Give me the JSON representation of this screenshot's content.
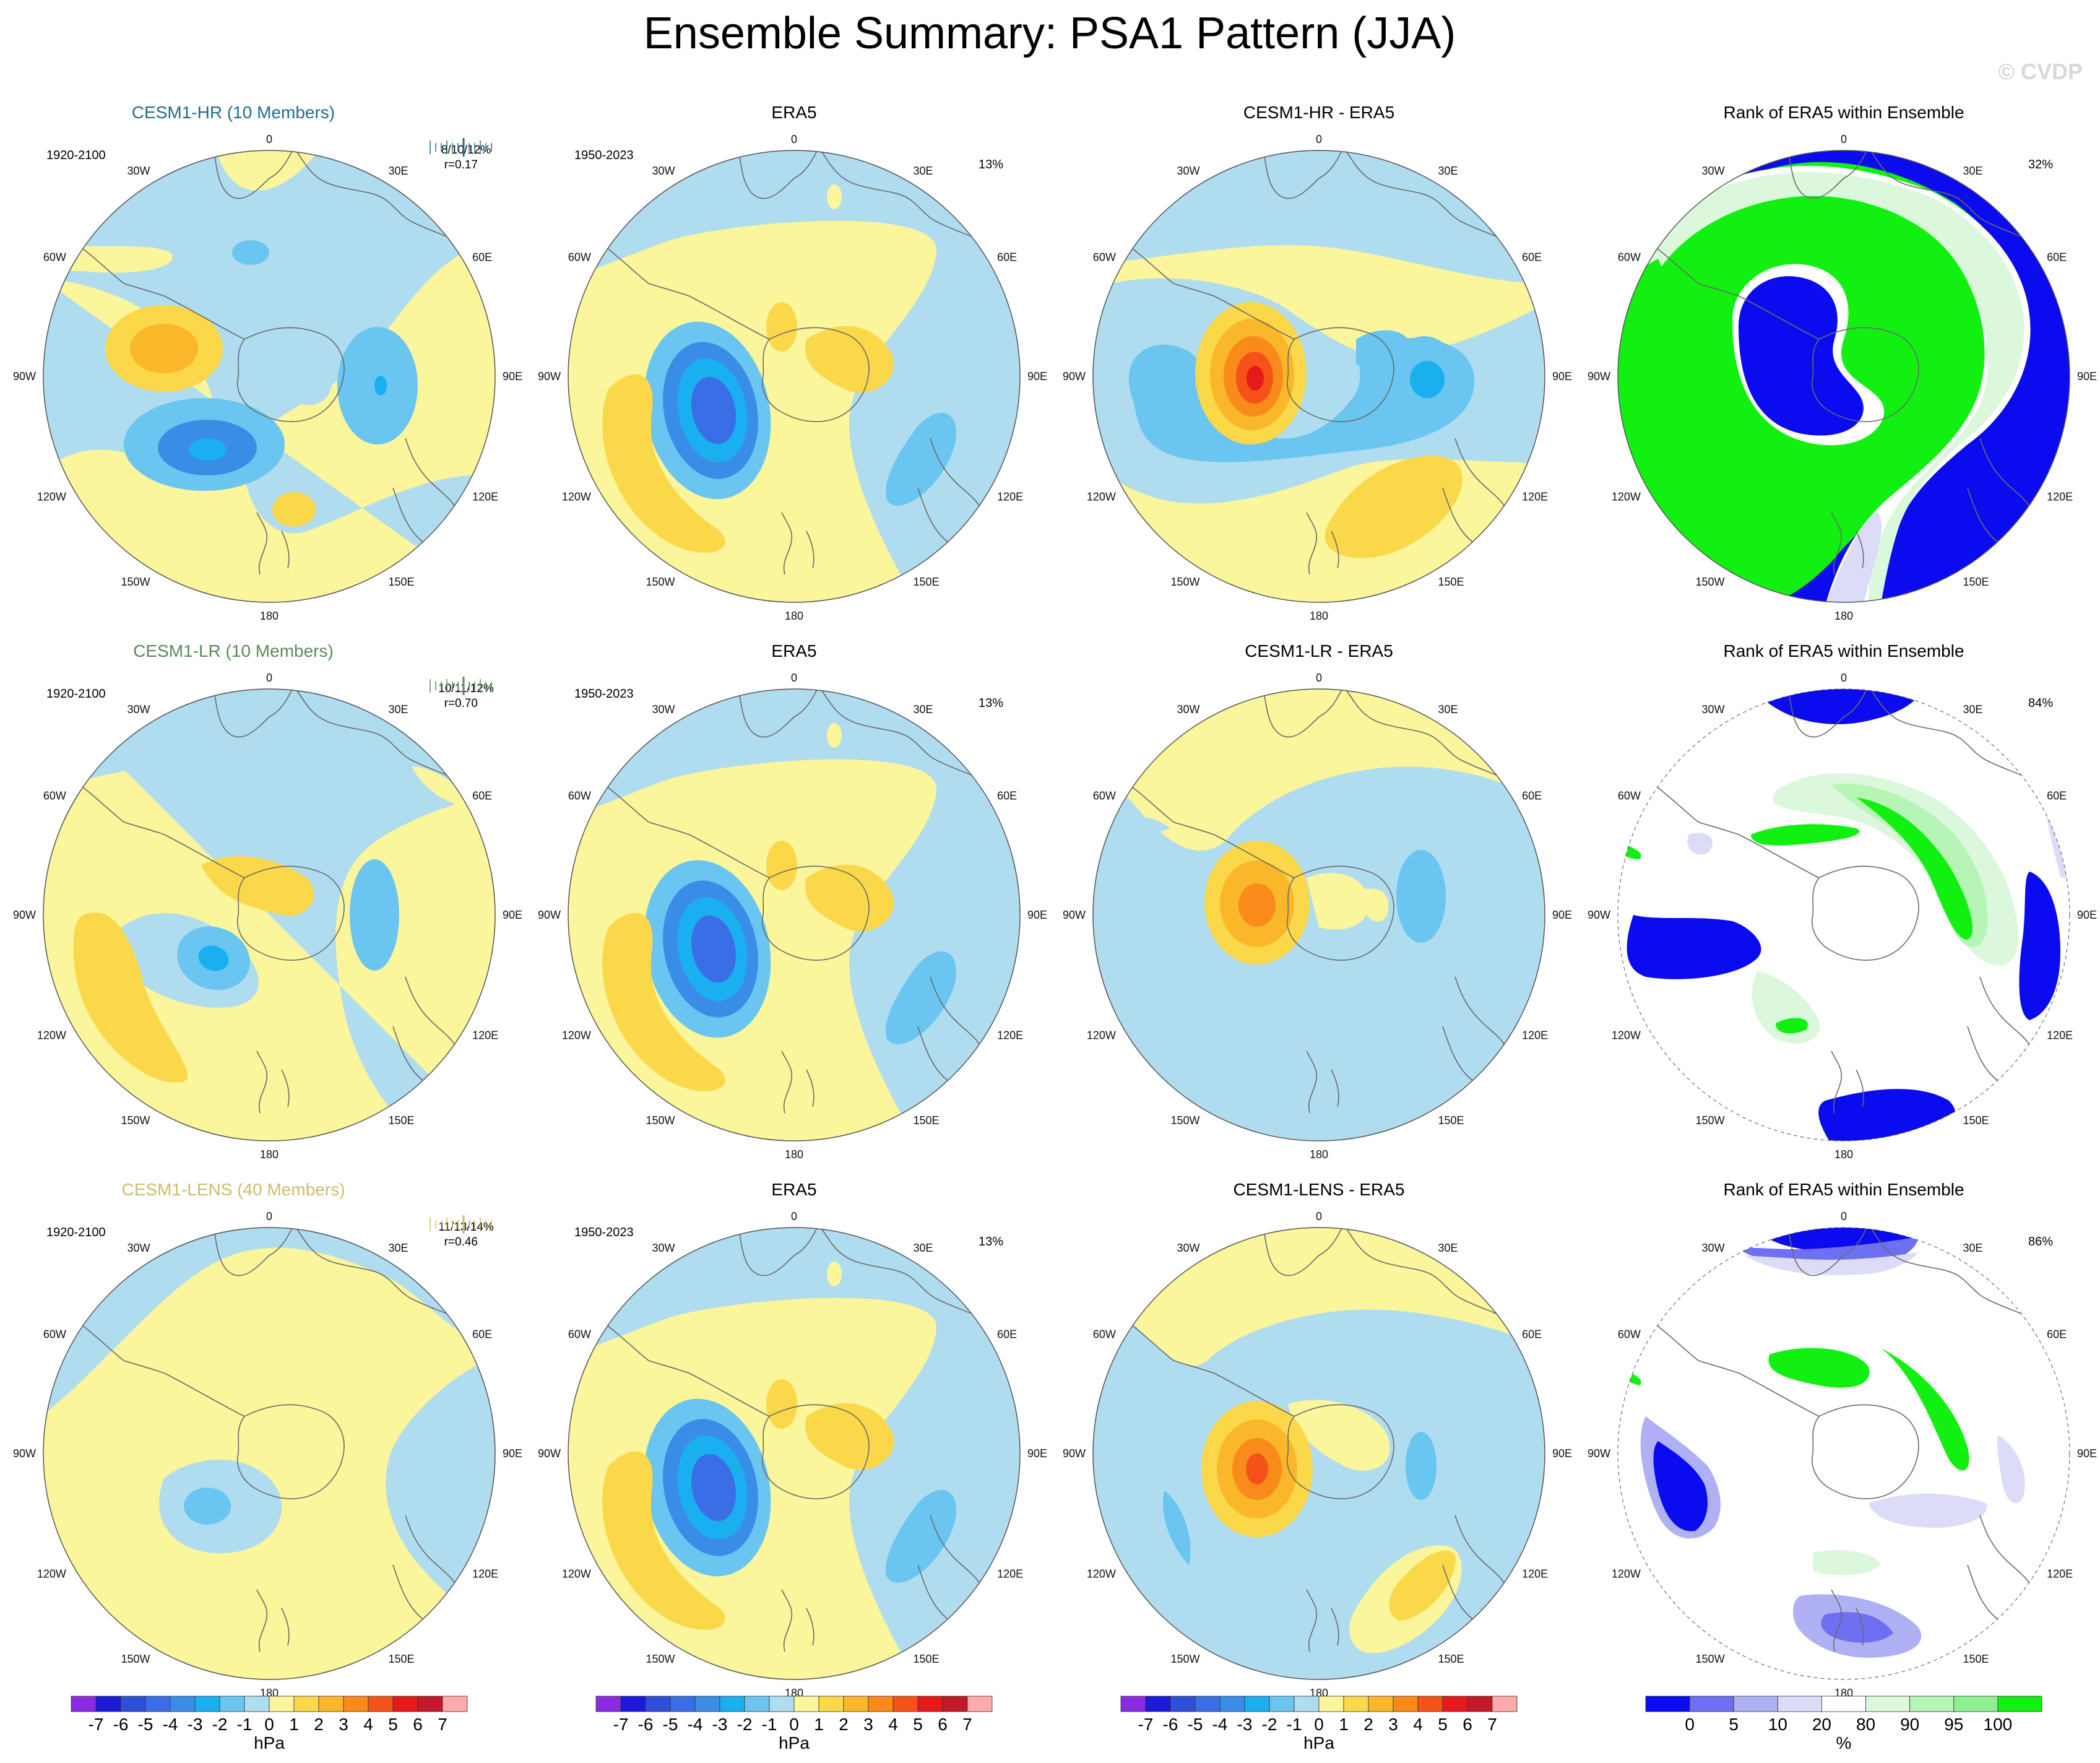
{
  "title": "Ensemble Summary: PSA1 Pattern (JJA)",
  "watermark": "© CVDP",
  "projection_labels": {
    "top": "0",
    "bottom": "180",
    "left": "90W",
    "right": "90E",
    "ul30": "30W",
    "ur30": "30E",
    "ul60": "60W",
    "ur60": "60E",
    "ll120": "120W",
    "lr120": "120E",
    "ll150": "150W",
    "lr150": "150E"
  },
  "rows": [
    {
      "model": "CESM1-HR (10 Members)",
      "model_color": "#1f6e8c",
      "model_period": "1920-2100",
      "model_stats": [
        "8/10/12%",
        "r=0.17"
      ],
      "obs_title": "ERA5",
      "obs_period": "1950-2023",
      "obs_pct": "13%",
      "diff_title": "CESM1-HR - ERA5",
      "rank_title": "Rank of ERA5 within Ensemble",
      "rank_pct": "32%"
    },
    {
      "model": "CESM1-LR (10 Members)",
      "model_color": "#5a8a5a",
      "model_period": "1920-2100",
      "model_stats": [
        "10/11/12%",
        "r=0.70"
      ],
      "obs_title": "ERA5",
      "obs_period": "1950-2023",
      "obs_pct": "13%",
      "diff_title": "CESM1-LR - ERA5",
      "rank_title": "Rank of ERA5 within Ensemble",
      "rank_pct": "84%"
    },
    {
      "model": "CESM1-LENS (40 Members)",
      "model_color": "#cdbd6a",
      "model_period": "1920-2100",
      "model_stats": [
        "11/13/14%",
        "r=0.46"
      ],
      "obs_title": "ERA5",
      "obs_period": "1950-2023",
      "obs_pct": "13%",
      "diff_title": "CESM1-LENS - ERA5",
      "rank_title": "Rank of ERA5 within Ensemble",
      "rank_pct": "86%"
    }
  ],
  "colorbars": [
    {
      "unit": "hPa",
      "tick_labels": [
        "-7",
        "-6",
        "-5",
        "-4",
        "-3",
        "-2",
        "-1",
        "0",
        "1",
        "2",
        "3",
        "4",
        "5",
        "6",
        "7"
      ],
      "colors": [
        "#8a2be2",
        "#1a1ad8",
        "#2e4fd8",
        "#3a6ee6",
        "#3a8de6",
        "#1ab0f0",
        "#6ac5f0",
        "#b0dcf0",
        "#fbf59b",
        "#fbd84a",
        "#fbb72a",
        "#f98b1a",
        "#f5521a",
        "#e61a1a",
        "#c21a2a",
        "#ffaaaa"
      ]
    },
    {
      "unit": "hPa",
      "tick_labels": [
        "-7",
        "-6",
        "-5",
        "-4",
        "-3",
        "-2",
        "-1",
        "0",
        "1",
        "2",
        "3",
        "4",
        "5",
        "6",
        "7"
      ],
      "colors": [
        "#8a2be2",
        "#1a1ad8",
        "#2e4fd8",
        "#3a6ee6",
        "#3a8de6",
        "#1ab0f0",
        "#6ac5f0",
        "#b0dcf0",
        "#fbf59b",
        "#fbd84a",
        "#fbb72a",
        "#f98b1a",
        "#f5521a",
        "#e61a1a",
        "#c21a2a",
        "#ffaaaa"
      ]
    },
    {
      "unit": "hPa",
      "tick_labels": [
        "-7",
        "-6",
        "-5",
        "-4",
        "-3",
        "-2",
        "-1",
        "0",
        "1",
        "2",
        "3",
        "4",
        "5",
        "6",
        "7"
      ],
      "colors": [
        "#8a2be2",
        "#1a1ad8",
        "#2e4fd8",
        "#3a6ee6",
        "#3a8de6",
        "#1ab0f0",
        "#6ac5f0",
        "#b0dcf0",
        "#fbf59b",
        "#fbd84a",
        "#fbb72a",
        "#f98b1a",
        "#f5521a",
        "#e61a1a",
        "#c21a2a",
        "#ffaaaa"
      ]
    },
    {
      "unit": "%",
      "tick_labels": [
        "0",
        "5",
        "10",
        "20",
        "80",
        "90",
        "95",
        "100"
      ],
      "colors": [
        "#0b0bf0",
        "#6f6ff2",
        "#b0b0f4",
        "#dcdcf8",
        "#ffffff",
        "#dcf8dc",
        "#b6f5b6",
        "#8ef08e",
        "#12f012"
      ]
    }
  ],
  "chart_data": [
    {
      "type": "heatmap",
      "panel": "model",
      "row": "CESM1-HR (10 Members)",
      "units": "hPa",
      "levels": [
        -7,
        -6,
        -5,
        -4,
        -3,
        -2,
        -1,
        0,
        1,
        2,
        3,
        4,
        5,
        6,
        7
      ],
      "features": [
        {
          "name": "positive center near Antarctic Peninsula / 60W",
          "lon_deg": -60,
          "lat_deg": -62,
          "peak_value": 3
        },
        {
          "name": "negative center near 120W",
          "lon_deg": -115,
          "lat_deg": -55,
          "peak_value": -4
        },
        {
          "name": "negative center near 80E",
          "lon_deg": 80,
          "lat_deg": -55,
          "peak_value": -4
        },
        {
          "name": "weak negative near 20W",
          "lon_deg": -20,
          "lat_deg": -40,
          "peak_value": -2
        },
        {
          "name": "weak positive near 170W",
          "lon_deg": -170,
          "lat_deg": -60,
          "peak_value": 2
        }
      ]
    },
    {
      "type": "heatmap",
      "panel": "obs",
      "title": "ERA5",
      "units": "hPa",
      "levels": [
        -7,
        -6,
        -5,
        -4,
        -3,
        -2,
        -1,
        0,
        1,
        2,
        3,
        4,
        5,
        6,
        7
      ],
      "features": [
        {
          "name": "negative center near 100W",
          "lon_deg": -95,
          "lat_deg": -60,
          "peak_value": -5
        },
        {
          "name": "positive arc near 110W-140W",
          "lon_deg": -125,
          "lat_deg": -40,
          "peak_value": 2
        },
        {
          "name": "positive over East Antarctica coast",
          "lon_deg": 10,
          "lat_deg": -70,
          "peak_value": 2
        },
        {
          "name": "negative near 120E-150E",
          "lon_deg": 125,
          "lat_deg": -45,
          "peak_value": -2
        }
      ]
    },
    {
      "type": "heatmap",
      "panel": "difference",
      "title": "CESM1-HR - ERA5",
      "units": "hPa",
      "levels": [
        -7,
        -6,
        -5,
        -4,
        -3,
        -2,
        -1,
        0,
        1,
        2,
        3,
        4,
        5,
        6,
        7
      ],
      "features": [
        {
          "name": "positive center near 70W",
          "lon_deg": -75,
          "lat_deg": -63,
          "peak_value": 7
        },
        {
          "name": "negative near 60E-90E",
          "lon_deg": 80,
          "lat_deg": -55,
          "peak_value": -4
        },
        {
          "name": "positive near 140E",
          "lon_deg": 145,
          "lat_deg": -45,
          "peak_value": 2
        }
      ]
    },
    {
      "type": "heatmap",
      "panel": "rank",
      "title": "Rank of ERA5 within Ensemble",
      "units": "%",
      "levels": [
        0,
        5,
        10,
        20,
        80,
        90,
        95,
        100
      ],
      "features": [
        {
          "name": "below ensemble (0%) around 90W and 90E-150E",
          "value": 0
        },
        {
          "name": "above ensemble (100%) over large interior",
          "value": 100
        }
      ]
    }
  ]
}
